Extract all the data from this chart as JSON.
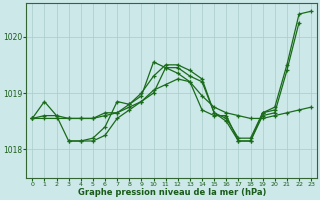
{
  "title": "Graphe pression niveau de la mer (hPa)",
  "xlabel_ticks": [
    "0",
    "1",
    "2",
    "3",
    "4",
    "5",
    "6",
    "7",
    "8",
    "9",
    "10",
    "11",
    "12",
    "13",
    "14",
    "15",
    "16",
    "17",
    "18",
    "19",
    "20",
    "21",
    "22",
    "23"
  ],
  "ylim": [
    1017.5,
    1020.6
  ],
  "yticks": [
    1018,
    1019,
    1020
  ],
  "xlim": [
    -0.5,
    23.5
  ],
  "background_color": "#cce8e8",
  "grid_color": "#aacccc",
  "line_color": "#1a6b1a",
  "line1": [
    1018.55,
    1018.85,
    1018.6,
    1018.15,
    1018.15,
    1018.2,
    1018.4,
    1018.85,
    1018.8,
    1018.95,
    1019.55,
    1019.45,
    1019.45,
    1019.3,
    1019.2,
    1018.65,
    1018.5,
    1018.15,
    1018.15,
    1018.6,
    1018.65,
    1019.4,
    1020.25,
    null
  ],
  "line2": [
    1018.55,
    null,
    null,
    1018.15,
    1018.15,
    1018.15,
    1018.25,
    1018.55,
    1018.7,
    1018.85,
    1019.0,
    1019.45,
    1019.35,
    1019.2,
    1018.7,
    1018.6,
    1018.6,
    1018.15,
    1018.15,
    1018.65,
    1018.7,
    null,
    null,
    null
  ],
  "line3": [
    1018.55,
    1018.6,
    1018.6,
    1018.55,
    1018.55,
    1018.55,
    1018.65,
    1018.65,
    1018.75,
    1018.85,
    1019.05,
    1019.15,
    1019.25,
    1019.2,
    1018.95,
    1018.75,
    1018.65,
    1018.6,
    1018.55,
    1018.55,
    1018.6,
    1018.65,
    1018.7,
    1018.75
  ],
  "line4": [
    1018.55,
    1018.55,
    1018.55,
    1018.55,
    1018.55,
    1018.55,
    1018.6,
    1018.65,
    1018.8,
    1019.0,
    1019.3,
    1019.5,
    1019.5,
    1019.4,
    1019.25,
    1018.65,
    1018.55,
    1018.2,
    1018.2,
    1018.65,
    1018.75,
    1019.5,
    1020.4,
    1020.45
  ]
}
